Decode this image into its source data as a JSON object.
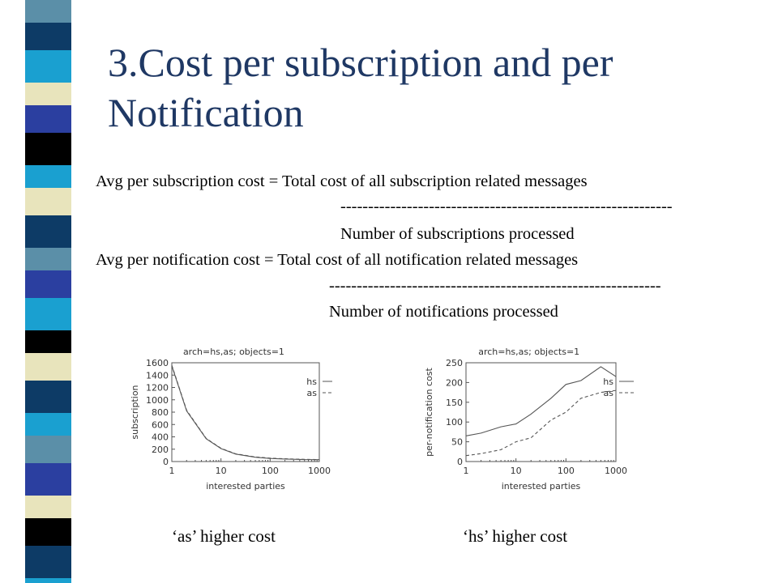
{
  "slide": {
    "title": "3.Cost per subscription and per Notification",
    "formulas": [
      {
        "numerator": "Avg per subscription cost = Total cost of all subscription related messages",
        "divider": "------------------------------------------------------------",
        "denominator": "Number of subscriptions processed"
      },
      {
        "numerator": "Avg per notification cost = Total cost of all notification related messages",
        "divider": "------------------------------------------------------------",
        "denominator": "Number of notifications processed"
      }
    ],
    "captions": [
      "‘as’ higher cost",
      "‘hs’ higher cost"
    ]
  },
  "theme": {
    "title_color": "#1f3864",
    "stripe_colors": [
      "#5b8fa8",
      "#0d3b66",
      "#1aa0d0",
      "#e8e4bc",
      "#2b3fa0",
      "#000000"
    ],
    "line_color": "#555555"
  },
  "chart_data": [
    {
      "type": "line",
      "title": "arch=hs,as; objects=1",
      "xlabel": "interested parties",
      "ylabel": "subscription",
      "x_scale": "log",
      "xlim": [
        1,
        1000
      ],
      "ylim": [
        0,
        1600
      ],
      "x_ticks": [
        "1",
        "10",
        "100",
        "1000"
      ],
      "y_ticks": [
        "0",
        "200",
        "400",
        "600",
        "800",
        "1000",
        "1200",
        "1400",
        "1600"
      ],
      "legend_position": "top-right",
      "series": [
        {
          "name": "hs",
          "style": "solid",
          "x": [
            1,
            2,
            5,
            10,
            20,
            50,
            100,
            200,
            500,
            1000
          ],
          "y": [
            1550,
            820,
            370,
            210,
            120,
            70,
            50,
            40,
            32,
            30
          ]
        },
        {
          "name": "as",
          "style": "dashed",
          "x": [
            1,
            2,
            5,
            10,
            20,
            50,
            100,
            200,
            500,
            1000
          ],
          "y": [
            1560,
            830,
            375,
            215,
            125,
            75,
            55,
            45,
            35,
            32
          ]
        }
      ]
    },
    {
      "type": "line",
      "title": "arch=hs,as; objects=1",
      "xlabel": "interested parties",
      "ylabel": "per-notification cost",
      "x_scale": "log",
      "xlim": [
        1,
        1000
      ],
      "ylim": [
        0,
        250
      ],
      "x_ticks": [
        "1",
        "10",
        "100",
        "1000"
      ],
      "y_ticks": [
        "0",
        "50",
        "100",
        "150",
        "200",
        "250"
      ],
      "legend_position": "top-right",
      "series": [
        {
          "name": "hs",
          "style": "solid",
          "x": [
            1,
            2,
            5,
            10,
            20,
            50,
            100,
            200,
            500,
            1000
          ],
          "y": [
            65,
            72,
            88,
            95,
            120,
            160,
            195,
            205,
            240,
            215
          ]
        },
        {
          "name": "as",
          "style": "dashed",
          "x": [
            1,
            2,
            5,
            10,
            20,
            50,
            100,
            200,
            500,
            1000
          ],
          "y": [
            15,
            20,
            30,
            50,
            60,
            105,
            125,
            160,
            175,
            180
          ]
        }
      ]
    }
  ]
}
